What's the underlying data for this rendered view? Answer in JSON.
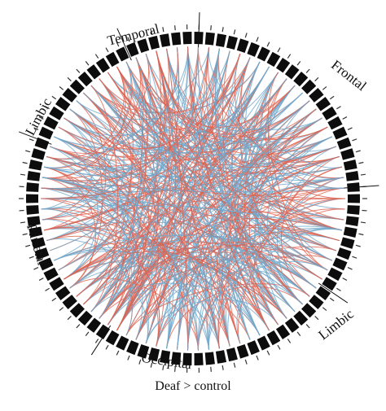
{
  "caption": "Deaf > control",
  "lobes": [
    {
      "name": "Temporal"
    },
    {
      "name": "Frontal"
    },
    {
      "name": "Limbic"
    },
    {
      "name": "Parietal"
    },
    {
      "name": "Occipital"
    },
    {
      "name": "Limbic"
    }
  ],
  "segment_count": 90,
  "colors": {
    "segment": "#0d0d0d",
    "increase": "#e0624f",
    "decrease": "#6fa8cc",
    "divider": "#111111",
    "text": "#111111"
  }
}
